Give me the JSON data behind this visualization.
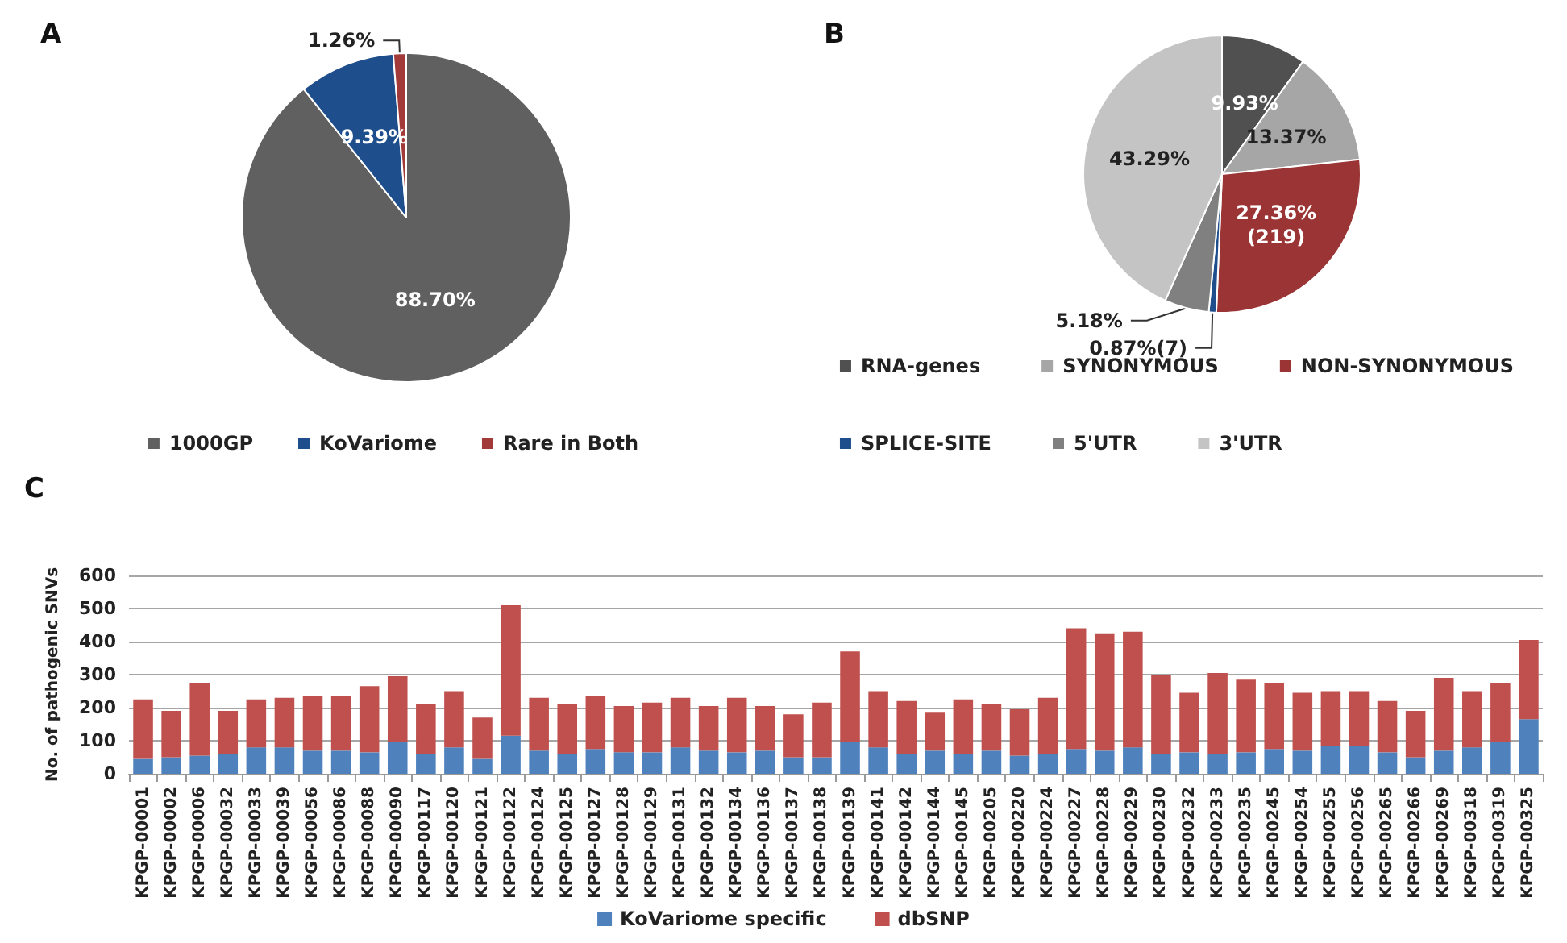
{
  "chart_data": [
    {
      "type": "pie",
      "title": "A",
      "categories": [
        "1000GP",
        "KoVariome",
        "Rare in Both"
      ],
      "values": [
        88.7,
        9.39,
        1.26
      ],
      "value_labels": [
        "88.70%",
        "9.39%",
        "1.26%"
      ],
      "colors": [
        "#606060",
        "#1f4e8c",
        "#a33a3a"
      ],
      "legend": "bottom"
    },
    {
      "type": "pie",
      "title": "B",
      "categories": [
        "RNA-genes",
        "SYNONYMOUS",
        "NON-SYNONYMOUS",
        "SPLICE-SITE",
        "5'UTR",
        "3'UTR"
      ],
      "values": [
        9.93,
        13.37,
        27.36,
        0.87,
        5.18,
        43.29
      ],
      "value_labels": [
        "9.93%",
        "13.37%",
        "27.36%\n(219)",
        "0.87%(7)",
        "5.18%",
        "43.29%"
      ],
      "colors": [
        "#505050",
        "#a6a6a6",
        "#9b3535",
        "#1f4e8c",
        "#808080",
        "#c4c4c4"
      ],
      "legend": "bottom"
    },
    {
      "type": "bar",
      "title": "C",
      "stacked": true,
      "ylabel": "No. of pathogenic SNVs",
      "ylim": [
        0,
        600
      ],
      "yticks": [
        0,
        100,
        200,
        300,
        400,
        500,
        600
      ],
      "grid": "y",
      "legend": "bottom",
      "categories": [
        "KPGP-00001",
        "KPGP-00002",
        "KPGP-00006",
        "KPGP-00032",
        "KPGP-00033",
        "KPGP-00039",
        "KPGP-00056",
        "KPGP-00086",
        "KPGP-00088",
        "KPGP-00090",
        "KPGP-00117",
        "KPGP-00120",
        "KPGP-00121",
        "KPGP-00122",
        "KPGP-00124",
        "KPGP-00125",
        "KPGP-00127",
        "KPGP-00128",
        "KPGP-00129",
        "KPGP-00131",
        "KPGP-00132",
        "KPGP-00134",
        "KPGP-00136",
        "KPGP-00137",
        "KPGP-00138",
        "KPGP-00139",
        "KPGP-00141",
        "KPGP-00142",
        "KPGP-00144",
        "KPGP-00145",
        "KPGP-00205",
        "KPGP-00220",
        "KPGP-00224",
        "KPGP-00227",
        "KPGP-00228",
        "KPGP-00229",
        "KPGP-00230",
        "KPGP-00232",
        "KPGP-00233",
        "KPGP-00235",
        "KPGP-00245",
        "KPGP-00254",
        "KPGP-00255",
        "KPGP-00256",
        "KPGP-00265",
        "KPGP-00266",
        "KPGP-00269",
        "KPGP-00318",
        "KPGP-00319",
        "KPGP-00325"
      ],
      "series": [
        {
          "name": "KoVariome specific",
          "color": "#4f81bd",
          "values": [
            45,
            50,
            55,
            60,
            80,
            80,
            70,
            70,
            65,
            95,
            60,
            80,
            45,
            115,
            70,
            60,
            75,
            65,
            65,
            80,
            70,
            65,
            70,
            50,
            50,
            95,
            80,
            60,
            70,
            60,
            70,
            55,
            60,
            75,
            70,
            80,
            60,
            65,
            60,
            65,
            75,
            70,
            85,
            85,
            65,
            50,
            70,
            80,
            95,
            165
          ]
        },
        {
          "name": "dbSNP",
          "color": "#c0504d",
          "values": [
            180,
            140,
            220,
            130,
            145,
            150,
            165,
            165,
            200,
            200,
            150,
            170,
            125,
            395,
            160,
            150,
            160,
            140,
            150,
            150,
            135,
            165,
            135,
            130,
            165,
            275,
            170,
            160,
            115,
            165,
            140,
            140,
            170,
            365,
            355,
            350,
            240,
            180,
            245,
            220,
            200,
            175,
            165,
            165,
            155,
            140,
            220,
            170,
            180,
            240
          ]
        }
      ]
    }
  ]
}
